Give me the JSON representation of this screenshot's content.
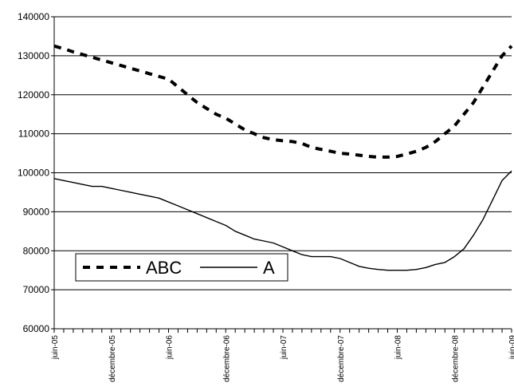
{
  "chart_data": {
    "type": "line",
    "title": "",
    "xlabel": "",
    "ylabel": "",
    "ylim": [
      60000,
      140000
    ],
    "yticks": [
      60000,
      70000,
      80000,
      90000,
      100000,
      110000,
      120000,
      130000,
      140000
    ],
    "ytick_labels": [
      "60000",
      "70000",
      "80000",
      "90000",
      "100000",
      "110000",
      "120000",
      "130000",
      "140000"
    ],
    "grid": "horizontal",
    "legend_position": "lower-left",
    "x": [
      "juin-05",
      "juil-05",
      "août-05",
      "sept-05",
      "oct-05",
      "nov-05",
      "déc-05",
      "janv-06",
      "févr-06",
      "mars-06",
      "avr-06",
      "mai-06",
      "juin-06",
      "juil-06",
      "août-06",
      "sept-06",
      "oct-06",
      "nov-06",
      "déc-06",
      "janv-07",
      "févr-07",
      "mars-07",
      "avr-07",
      "mai-07",
      "juin-07",
      "juil-07",
      "août-07",
      "sept-07",
      "oct-07",
      "nov-07",
      "déc-07",
      "janv-08",
      "févr-08",
      "mars-08",
      "avr-08",
      "mai-08",
      "juin-08",
      "juil-08",
      "août-08",
      "sept-08",
      "oct-08",
      "nov-08",
      "déc-08",
      "janv-09",
      "févr-09",
      "mars-09",
      "avr-09",
      "mai-09",
      "juin-09"
    ],
    "xtick_labels": [
      {
        "index": 0,
        "label": "juin-05"
      },
      {
        "index": 6,
        "label": "décembre-05"
      },
      {
        "index": 12,
        "label": "juin-06"
      },
      {
        "index": 18,
        "label": "décembre-06"
      },
      {
        "index": 24,
        "label": "juin-07"
      },
      {
        "index": 30,
        "label": "décembre-07"
      },
      {
        "index": 36,
        "label": "juin-08"
      },
      {
        "index": 42,
        "label": "décembre-08"
      },
      {
        "index": 48,
        "label": "juin-09"
      }
    ],
    "series": [
      {
        "name": "ABC",
        "style": "dashed",
        "color": "#000000",
        "values": [
          132500,
          131800,
          131000,
          130300,
          129600,
          128900,
          128200,
          127500,
          126800,
          126100,
          125400,
          124700,
          124000,
          122000,
          120000,
          118000,
          116500,
          115000,
          114000,
          112500,
          111000,
          110000,
          109000,
          108500,
          108200,
          108000,
          107500,
          106500,
          106000,
          105500,
          105000,
          104800,
          104500,
          104200,
          104000,
          104000,
          104200,
          104800,
          105500,
          106500,
          108000,
          110000,
          112000,
          115000,
          118000,
          122000,
          126000,
          130000,
          132500
        ]
      },
      {
        "name": "A",
        "style": "solid",
        "color": "#000000",
        "values": [
          98500,
          98000,
          97500,
          97000,
          96500,
          96500,
          96000,
          95500,
          95000,
          94500,
          94000,
          93500,
          92500,
          91500,
          90500,
          89500,
          88500,
          87500,
          86500,
          85000,
          84000,
          83000,
          82500,
          82000,
          81000,
          80000,
          79000,
          78500,
          78500,
          78500,
          78000,
          77000,
          76000,
          75500,
          75200,
          75000,
          75000,
          75000,
          75200,
          75700,
          76500,
          77000,
          78500,
          80500,
          84000,
          88000,
          93000,
          98000,
          100500
        ]
      }
    ]
  }
}
